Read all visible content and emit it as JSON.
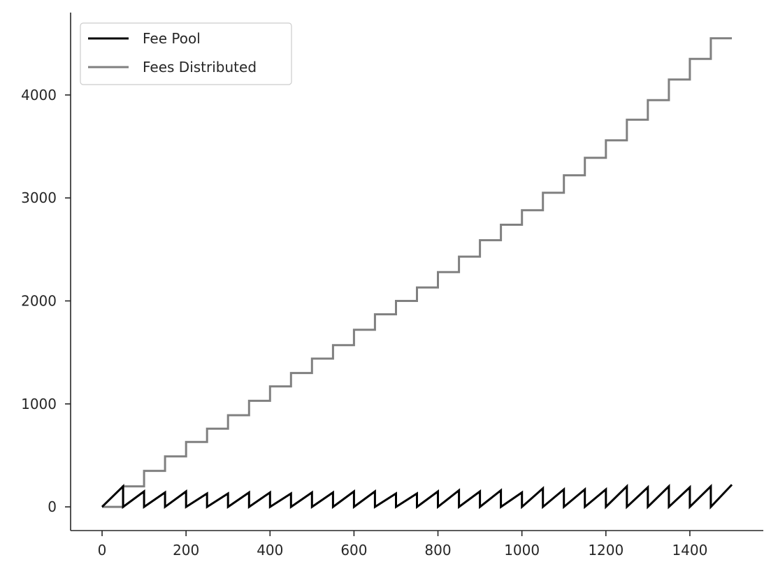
{
  "chart_data": {
    "type": "line",
    "title": "",
    "xlabel": "",
    "ylabel": "",
    "xlim": [
      -75,
      1575
    ],
    "ylim": [
      -230,
      4800
    ],
    "xticks": [
      0,
      200,
      400,
      600,
      800,
      1000,
      1200,
      1400
    ],
    "yticks": [
      0,
      1000,
      2000,
      3000,
      4000
    ],
    "grid": false,
    "legend": "top-left",
    "series": [
      {
        "name": "Fee Pool",
        "color": "#000000",
        "period": 50,
        "cycles": [
          {
            "start": 0,
            "peak": 200
          },
          {
            "start": 50,
            "peak": 150
          },
          {
            "start": 100,
            "peak": 140
          },
          {
            "start": 150,
            "peak": 150
          },
          {
            "start": 200,
            "peak": 130
          },
          {
            "start": 250,
            "peak": 130
          },
          {
            "start": 300,
            "peak": 140
          },
          {
            "start": 350,
            "peak": 140
          },
          {
            "start": 400,
            "peak": 130
          },
          {
            "start": 450,
            "peak": 140
          },
          {
            "start": 500,
            "peak": 140
          },
          {
            "start": 550,
            "peak": 150
          },
          {
            "start": 600,
            "peak": 150
          },
          {
            "start": 650,
            "peak": 130
          },
          {
            "start": 700,
            "peak": 130
          },
          {
            "start": 750,
            "peak": 150
          },
          {
            "start": 800,
            "peak": 160
          },
          {
            "start": 850,
            "peak": 150
          },
          {
            "start": 900,
            "peak": 160
          },
          {
            "start": 950,
            "peak": 140
          },
          {
            "start": 1000,
            "peak": 180
          },
          {
            "start": 1050,
            "peak": 170
          },
          {
            "start": 1100,
            "peak": 170
          },
          {
            "start": 1150,
            "peak": 170
          },
          {
            "start": 1200,
            "peak": 200
          },
          {
            "start": 1250,
            "peak": 190
          },
          {
            "start": 1300,
            "peak": 200
          },
          {
            "start": 1350,
            "peak": 190
          },
          {
            "start": 1400,
            "peak": 200
          },
          {
            "start": 1450,
            "peak": 215
          }
        ]
      },
      {
        "name": "Fees Distributed",
        "color": "#808080",
        "step_x": [
          0,
          50,
          100,
          150,
          200,
          250,
          300,
          350,
          400,
          450,
          500,
          550,
          600,
          650,
          700,
          750,
          800,
          850,
          900,
          950,
          1000,
          1050,
          1100,
          1150,
          1200,
          1250,
          1300,
          1350,
          1400,
          1450,
          1500
        ],
        "step_y": [
          0,
          200,
          350,
          490,
          630,
          760,
          890,
          1030,
          1170,
          1300,
          1440,
          1570,
          1720,
          1870,
          2000,
          2130,
          2280,
          2430,
          2590,
          2740,
          2880,
          3050,
          3220,
          3390,
          3560,
          3760,
          3950,
          4150,
          4350,
          4550,
          4550
        ]
      }
    ]
  }
}
